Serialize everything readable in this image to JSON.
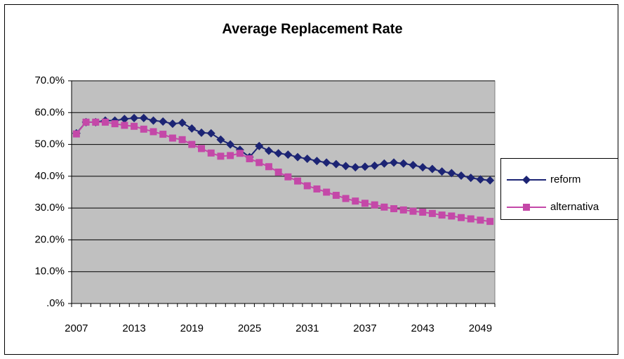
{
  "chart_data": {
    "type": "line",
    "title": "Average Replacement Rate",
    "categories": [
      "2007",
      null,
      null,
      null,
      null,
      null,
      "2013",
      null,
      null,
      null,
      null,
      null,
      "2019",
      null,
      null,
      null,
      null,
      null,
      "2025",
      null,
      null,
      null,
      null,
      null,
      "2031",
      null,
      null,
      null,
      null,
      null,
      "2037",
      null,
      null,
      null,
      null,
      null,
      "2043",
      null,
      null,
      null,
      null,
      null,
      "2049",
      null
    ],
    "series": [
      {
        "name": "reform",
        "color": "#1c2474",
        "marker": "diamond",
        "values": [
          53.5,
          57,
          57,
          57.5,
          57.5,
          58,
          58.3,
          58.3,
          57.5,
          57.2,
          56.5,
          56.8,
          55,
          53.7,
          53.5,
          51.5,
          50,
          48.3,
          46,
          49.5,
          48,
          47.2,
          46.8,
          46,
          45.5,
          44.8,
          44.3,
          43.8,
          43.2,
          42.8,
          43,
          43.3,
          44,
          44.3,
          44,
          43.5,
          42.8,
          42.3,
          41.5,
          41,
          40.2,
          39.5,
          39,
          38.7
        ]
      },
      {
        "name": "alternativa",
        "color": "#c448a8",
        "marker": "square",
        "values": [
          53.3,
          57,
          57,
          57,
          56.5,
          56,
          55.7,
          54.8,
          54,
          53.2,
          52,
          51.5,
          50,
          48.7,
          47.3,
          46.3,
          46.5,
          47.2,
          45.5,
          44.3,
          43,
          41.3,
          39.8,
          38.5,
          37,
          36,
          35,
          34,
          33,
          32.2,
          31.5,
          31,
          30.3,
          29.8,
          29.4,
          29,
          28.7,
          28.3,
          27.8,
          27.5,
          27,
          26.6,
          26.2,
          25.8
        ]
      }
    ],
    "ylim": [
      0,
      70
    ],
    "yticks": [
      {
        "value": 0,
        "label": ".0%"
      },
      {
        "value": 10,
        "label": "10.0%"
      },
      {
        "value": 20,
        "label": "20.0%"
      },
      {
        "value": 30,
        "label": "30.0%"
      },
      {
        "value": 40,
        "label": "40.0%"
      },
      {
        "value": 50,
        "label": "50.0%"
      },
      {
        "value": 60,
        "label": "60.0%"
      },
      {
        "value": 70,
        "label": "70.0%"
      }
    ],
    "grid": true,
    "legend": "right"
  }
}
